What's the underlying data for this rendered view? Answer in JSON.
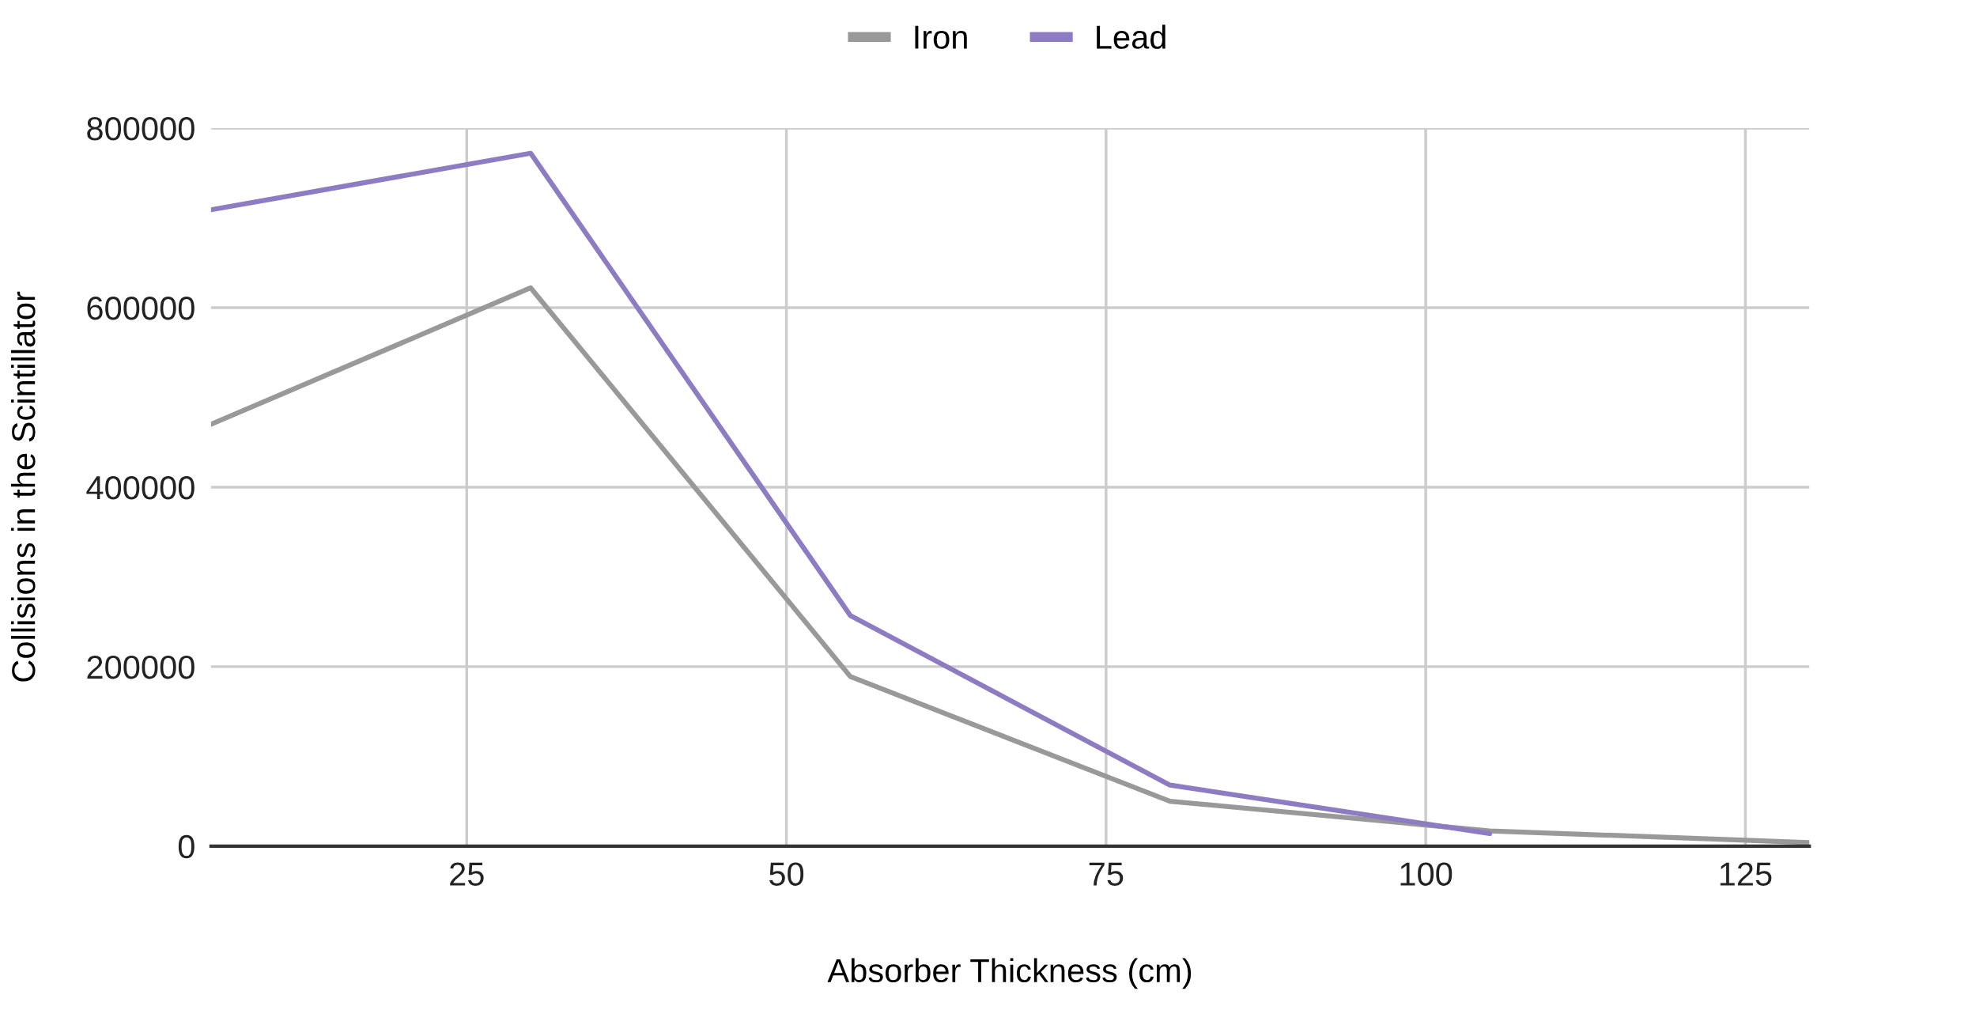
{
  "chart_data": {
    "type": "line",
    "xlabel": "Absorber Thickness (cm)",
    "ylabel": "Collisions in the Scintillator",
    "x": [
      5,
      30,
      55,
      80,
      105,
      130
    ],
    "series": [
      {
        "name": "Iron",
        "color": "#999999",
        "values": [
          470000,
          622000,
          189000,
          50000,
          17000,
          4000
        ]
      },
      {
        "name": "Lead",
        "color": "#8e7cc3",
        "values": [
          709000,
          772000,
          257000,
          68000,
          14000,
          null
        ]
      }
    ],
    "xlim": [
      5,
      130
    ],
    "xticks": [
      25,
      50,
      75,
      100,
      125
    ],
    "ylim": [
      0,
      800000
    ],
    "yticks": [
      0,
      200000,
      400000,
      600000,
      800000
    ],
    "grid": true,
    "legend": "top"
  }
}
